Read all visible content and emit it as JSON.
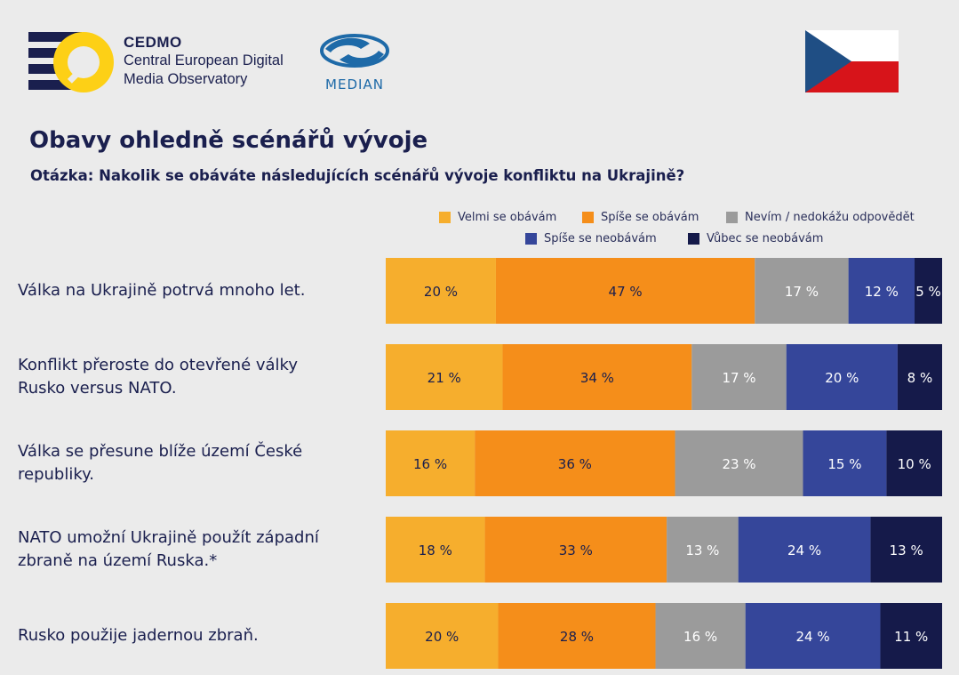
{
  "header": {
    "cedmo": {
      "name": "CEDMO",
      "line1": "Central European Digital",
      "line2": "Media Observatory"
    },
    "median": {
      "name": "MEDIAN"
    },
    "flag": "czech-flag"
  },
  "colors": {
    "navy_text": "#1a1f4e",
    "velmi_se_obavam": "#f6ae2d",
    "spise_se_obavam": "#f58e1a",
    "nevim": "#9b9b9b",
    "spise_se_neobavam": "#35469a",
    "vubec_se_neobavam": "#151a4a",
    "cedmo_yellow": "#fdd016",
    "median_blue": "#1e6aa8"
  },
  "chart_data": {
    "type": "bar",
    "orientation": "horizontal",
    "stacked": true,
    "title": "Obavy ohledně scénářů vývoje",
    "subtitle": "Otázka: Nakolik se obáváte následujících scénářů vývoje konfliktu na Ukrajině?",
    "value_suffix": " %",
    "legend_position": "top-right",
    "categories": [
      [
        "Válka na Ukrajině potrvá mnoho let."
      ],
      [
        "Konflikt přeroste do otevřené války",
        "Rusko versus NATO."
      ],
      [
        "Válka se přesune blíže území České",
        "republiky."
      ],
      [
        "NATO umožní Ukrajině použít západní",
        "zbraně na území Ruska.*"
      ],
      [
        "Rusko použije jadernou zbraň."
      ]
    ],
    "series": [
      {
        "name": "Velmi se obávám",
        "color": "#f6ae2d",
        "label_color": "#1a1f4e",
        "values": [
          20,
          21,
          16,
          18,
          20
        ]
      },
      {
        "name": "Spíše se obávám",
        "color": "#f58e1a",
        "label_color": "#1a1f4e",
        "values": [
          47,
          34,
          36,
          33,
          28
        ]
      },
      {
        "name": "Nevím / nedokážu odpovědět",
        "color": "#9b9b9b",
        "label_color": "#ffffff",
        "values": [
          17,
          17,
          23,
          13,
          16
        ]
      },
      {
        "name": "Spíše se neobávám",
        "color": "#35469a",
        "label_color": "#ffffff",
        "values": [
          12,
          20,
          15,
          24,
          24
        ]
      },
      {
        "name": "Vůbec se neobávám",
        "color": "#151a4a",
        "label_color": "#ffffff",
        "values": [
          5,
          8,
          10,
          13,
          11
        ]
      }
    ]
  }
}
